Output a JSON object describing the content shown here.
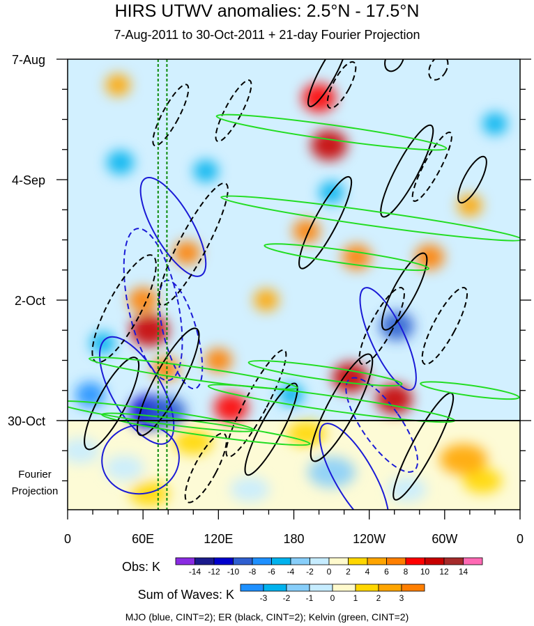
{
  "chart_data": {
    "type": "heatmap",
    "title": "HIRS UTWV anomalies: 2.5°N - 17.5°N",
    "subtitle": "7-Aug-2011 to 30-Oct-2011 + 21-day Fourier Projection",
    "x_ticks": [
      "0",
      "60E",
      "120E",
      "180",
      "120W",
      "60W",
      "0"
    ],
    "x_tick_values": [
      0,
      60,
      120,
      180,
      240,
      300,
      360
    ],
    "y_ticks": [
      "7-Aug",
      "4-Sep",
      "2-Oct",
      "30-Oct"
    ],
    "y_tick_days": [
      0,
      28,
      56,
      84
    ],
    "projection_days": 21,
    "projection_label_line1": "Fourier",
    "projection_label_line2": "Projection",
    "mjo_meridians": [
      72,
      79
    ],
    "obs_colorbar": {
      "label": "Obs: K",
      "levels": [
        "-14",
        "-12",
        "-10",
        "-8",
        "-6",
        "-4",
        "-2",
        "0",
        "2",
        "4",
        "6",
        "8",
        "10",
        "12",
        "14"
      ],
      "colors": [
        "#8a2be2",
        "#1a1a8c",
        "#0000cd",
        "#2f5fd0",
        "#1e90ff",
        "#00b2ee",
        "#87cefa",
        "#c6ecff",
        "#fffacd",
        "#ffd700",
        "#ffa500",
        "#ff7f00",
        "#ff0000",
        "#c80000",
        "#a52a2a",
        "#ff69b4"
      ]
    },
    "waves_colorbar": {
      "label": "Sum of Waves: K",
      "levels": [
        "-3",
        "-2",
        "-1",
        "0",
        "1",
        "2",
        "3"
      ],
      "colors": [
        "#1e90ff",
        "#00b2ee",
        "#87cefa",
        "#c6ecff",
        "#fffacd",
        "#ffd700",
        "#ffa500",
        "#ff7f00"
      ]
    },
    "features": [
      {
        "type": "Obs",
        "lon": 200,
        "day": 9,
        "value": 9
      },
      {
        "type": "Obs",
        "lon": 208,
        "day": 20,
        "value": 10
      },
      {
        "type": "Obs",
        "lon": 190,
        "day": 40,
        "value": 6
      },
      {
        "type": "Obs",
        "lon": 230,
        "day": 46,
        "value": 7
      },
      {
        "type": "Obs",
        "lon": 288,
        "day": 46,
        "value": 7
      },
      {
        "type": "Obs",
        "lon": 65,
        "day": 63,
        "value": 11
      },
      {
        "type": "Obs",
        "lon": 60,
        "day": 56,
        "value": 7
      },
      {
        "type": "Obs",
        "lon": 225,
        "day": 74,
        "value": 10
      },
      {
        "type": "Obs",
        "lon": 260,
        "day": 79,
        "value": 10
      },
      {
        "type": "Obs",
        "lon": 130,
        "day": 81,
        "value": 9
      },
      {
        "type": "Obs",
        "lon": 78,
        "day": 72,
        "value": 6
      },
      {
        "type": "Obs",
        "lon": 65,
        "day": 82,
        "value": -12
      },
      {
        "type": "Obs",
        "lon": 80,
        "day": 82,
        "value": -10
      },
      {
        "type": "Obs",
        "lon": 262,
        "day": 62,
        "value": -9
      },
      {
        "type": "Obs",
        "lon": 18,
        "day": 78,
        "value": -7
      },
      {
        "type": "Obs",
        "lon": 28,
        "day": 66,
        "value": -5
      },
      {
        "type": "Obs",
        "lon": 42,
        "day": 24,
        "value": -6
      },
      {
        "type": "Obs",
        "lon": 110,
        "day": 26,
        "value": -5
      },
      {
        "type": "Obs",
        "lon": 210,
        "day": 31,
        "value": -5
      },
      {
        "type": "Obs",
        "lon": 178,
        "day": 78,
        "value": -5
      },
      {
        "type": "Obs",
        "lon": 40,
        "day": 6,
        "value": 5
      },
      {
        "type": "Obs",
        "lon": 158,
        "day": 56,
        "value": 5
      },
      {
        "type": "Obs",
        "lon": 320,
        "day": 34,
        "value": 5
      },
      {
        "type": "Obs",
        "lon": 340,
        "day": 15,
        "value": -5
      },
      {
        "type": "Obs",
        "lon": 120,
        "day": 70,
        "value": 6
      },
      {
        "type": "Obs",
        "lon": 95,
        "day": 45,
        "value": 6
      },
      {
        "type": "Waves",
        "lon": 210,
        "day": 96,
        "value": -2
      },
      {
        "type": "Waves",
        "lon": 45,
        "day": 95,
        "value": -1
      },
      {
        "type": "Waves",
        "lon": 145,
        "day": 100,
        "value": -1
      },
      {
        "type": "Waves",
        "lon": 270,
        "day": 100,
        "value": -1
      },
      {
        "type": "Waves",
        "lon": 65,
        "day": 101,
        "value": 1
      },
      {
        "type": "Waves",
        "lon": 330,
        "day": 98,
        "value": 1
      },
      {
        "type": "Waves",
        "lon": 315,
        "day": 93,
        "value": 2
      },
      {
        "type": "Waves",
        "lon": 190,
        "day": 87,
        "value": 1
      },
      {
        "type": "Waves",
        "lon": 100,
        "day": 89,
        "value": 1
      },
      {
        "type": "Waves",
        "lon": 10,
        "day": 91,
        "value": -1
      }
    ],
    "contours": [
      {
        "wave": "MJO",
        "sign": "pos",
        "lon": 84,
        "day": 39,
        "rx": 7,
        "ry": 13,
        "rot": -30
      },
      {
        "wave": "MJO",
        "sign": "neg",
        "lon": 68,
        "day": 57,
        "rx": 9,
        "ry": 18,
        "rot": -12
      },
      {
        "wave": "MJO",
        "sign": "neg",
        "lon": 90,
        "day": 64,
        "rx": 6,
        "ry": 13,
        "rot": -15
      },
      {
        "wave": "MJO",
        "sign": "pos",
        "lon": 55,
        "day": 77,
        "rx": 9,
        "ry": 14,
        "rot": -30
      },
      {
        "wave": "MJO",
        "sign": "pos",
        "lon": 58,
        "day": 93,
        "rx": 14,
        "ry": 8,
        "rot": -10
      },
      {
        "wave": "MJO",
        "sign": "pos",
        "lon": 255,
        "day": 65,
        "rx": 6,
        "ry": 13,
        "rot": -25
      },
      {
        "wave": "MJO",
        "sign": "neg",
        "lon": 250,
        "day": 85,
        "rx": 7,
        "ry": 13,
        "rot": -35
      },
      {
        "wave": "MJO",
        "sign": "pos",
        "lon": 228,
        "day": 97,
        "rx": 7,
        "ry": 14,
        "rot": -30
      },
      {
        "wave": "ER",
        "sign": "pos",
        "lon": 207,
        "day": 3,
        "rx": 3,
        "ry": 9,
        "rot": 28
      },
      {
        "wave": "ER",
        "sign": "neg",
        "lon": 218,
        "day": 6,
        "rx": 3,
        "ry": 6,
        "rot": 28
      },
      {
        "wave": "ER",
        "sign": "pos",
        "lon": 260,
        "day": 0,
        "rx": 3,
        "ry": 3,
        "rot": 28
      },
      {
        "wave": "ER",
        "sign": "neg",
        "lon": 295,
        "day": 2,
        "rx": 3,
        "ry": 3,
        "rot": 28
      },
      {
        "wave": "ER",
        "sign": "pos",
        "lon": 205,
        "day": 38,
        "rx": 4,
        "ry": 12,
        "rot": 28
      },
      {
        "wave": "ER",
        "sign": "pos",
        "lon": 270,
        "day": 26,
        "rx": 4,
        "ry": 12,
        "rot": 28
      },
      {
        "wave": "ER",
        "sign": "neg",
        "lon": 290,
        "day": 25,
        "rx": 3,
        "ry": 9,
        "rot": 28
      },
      {
        "wave": "ER",
        "sign": "pos",
        "lon": 322,
        "day": 28,
        "rx": 3,
        "ry": 6,
        "rot": 28
      },
      {
        "wave": "ER",
        "sign": "neg",
        "lon": 82,
        "day": 13,
        "rx": 3,
        "ry": 8,
        "rot": 28
      },
      {
        "wave": "ER",
        "sign": "neg",
        "lon": 132,
        "day": 12,
        "rx": 3,
        "ry": 8,
        "rot": 28
      },
      {
        "wave": "ER",
        "sign": "neg",
        "lon": 45,
        "day": 58,
        "rx": 6,
        "ry": 14,
        "rot": 28
      },
      {
        "wave": "ER",
        "sign": "neg",
        "lon": 100,
        "day": 43,
        "rx": 5,
        "ry": 16,
        "rot": 28
      },
      {
        "wave": "ER",
        "sign": "pos",
        "lon": 35,
        "day": 80,
        "rx": 5,
        "ry": 12,
        "rot": 28
      },
      {
        "wave": "ER",
        "sign": "pos",
        "lon": 80,
        "day": 75,
        "rx": 5,
        "ry": 14,
        "rot": 28
      },
      {
        "wave": "ER",
        "sign": "neg",
        "lon": 150,
        "day": 80,
        "rx": 4,
        "ry": 14,
        "rot": 28
      },
      {
        "wave": "ER",
        "sign": "pos",
        "lon": 162,
        "day": 86,
        "rx": 4,
        "ry": 12,
        "rot": 28
      },
      {
        "wave": "ER",
        "sign": "neg",
        "lon": 110,
        "day": 95,
        "rx": 4,
        "ry": 9,
        "rot": 28
      },
      {
        "wave": "ER",
        "sign": "pos",
        "lon": 218,
        "day": 81,
        "rx": 5,
        "ry": 14,
        "rot": 28
      },
      {
        "wave": "ER",
        "sign": "neg",
        "lon": 250,
        "day": 62,
        "rx": 4,
        "ry": 10,
        "rot": 28
      },
      {
        "wave": "ER",
        "sign": "pos",
        "lon": 283,
        "day": 90,
        "rx": 4,
        "ry": 14,
        "rot": 28
      },
      {
        "wave": "ER",
        "sign": "neg",
        "lon": 300,
        "day": 62,
        "rx": 4,
        "ry": 10,
        "rot": 28
      },
      {
        "wave": "ER",
        "sign": "pos",
        "lon": 268,
        "day": 54,
        "rx": 4,
        "ry": 10,
        "rot": 28
      },
      {
        "wave": "KELVIN",
        "sign": "pos",
        "lon": 210,
        "day": 17,
        "rx": 42,
        "ry": 1.7,
        "rot": 8
      },
      {
        "wave": "KELVIN",
        "sign": "pos",
        "lon": 242,
        "day": 37,
        "rx": 55,
        "ry": 1.7,
        "rot": 8
      },
      {
        "wave": "KELVIN",
        "sign": "pos",
        "lon": 222,
        "day": 46,
        "rx": 30,
        "ry": 1.5,
        "rot": 8
      },
      {
        "wave": "KELVIN",
        "sign": "pos",
        "lon": 205,
        "day": 73,
        "rx": 28,
        "ry": 1.5,
        "rot": 8
      },
      {
        "wave": "KELVIN",
        "sign": "pos",
        "lon": 100,
        "day": 73,
        "rx": 38,
        "ry": 1.5,
        "rot": 8
      },
      {
        "wave": "KELVIN",
        "sign": "pos",
        "lon": 210,
        "day": 80,
        "rx": 45,
        "ry": 1.7,
        "rot": 8
      },
      {
        "wave": "KELVIN",
        "sign": "pos",
        "lon": 70,
        "day": 83,
        "rx": 36,
        "ry": 1.5,
        "rot": 8
      },
      {
        "wave": "KELVIN",
        "sign": "pos",
        "lon": 110,
        "day": 86,
        "rx": 38,
        "ry": 1.5,
        "rot": 8
      },
      {
        "wave": "KELVIN",
        "sign": "pos",
        "lon": 320,
        "day": 77,
        "rx": 18,
        "ry": 1.2,
        "rot": 8
      }
    ],
    "footer": "MJO (blue, CINT=2); ER (black, CINT=2); Kelvin (green, CINT=2)"
  }
}
